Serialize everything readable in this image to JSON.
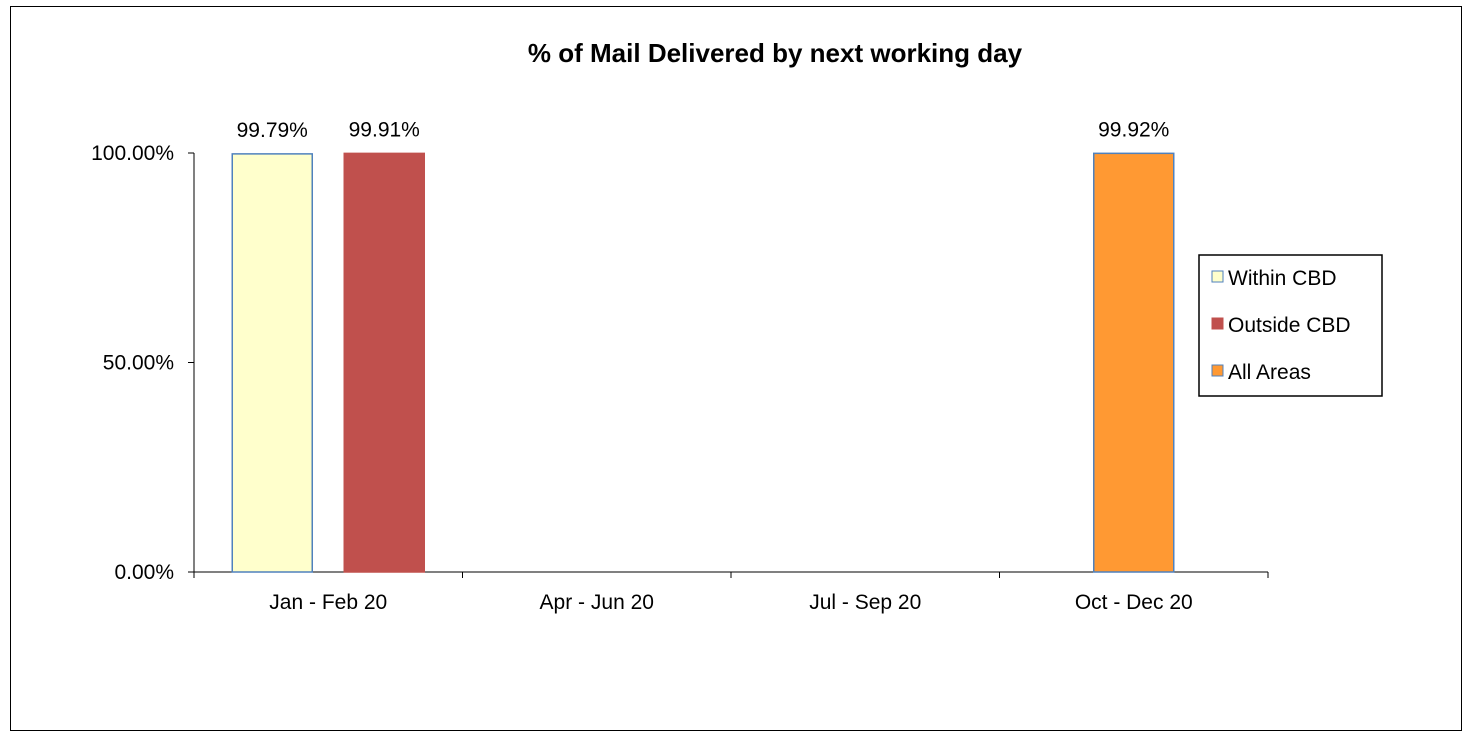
{
  "chart_data": {
    "type": "bar",
    "title": "% of Mail Delivered by next working day",
    "xlabel": "",
    "ylabel": "",
    "categories": [
      "Jan - Feb 20",
      "Apr - Jun 20",
      "Jul - Sep 20",
      "Oct - Dec 20"
    ],
    "series": [
      {
        "name": "Within CBD",
        "color": "#FFFFCC",
        "border": "#4F81BD",
        "values": [
          99.79,
          null,
          null,
          null
        ],
        "labels": [
          "99.79%",
          "",
          "",
          ""
        ]
      },
      {
        "name": "Outside CBD",
        "color": "#C0504D",
        "border": "#C0504D",
        "values": [
          99.91,
          null,
          null,
          null
        ],
        "labels": [
          "99.91%",
          "",
          "",
          ""
        ]
      },
      {
        "name": "All Areas",
        "color": "#FF9933",
        "border": "#4F81BD",
        "values": [
          null,
          null,
          null,
          99.92
        ],
        "labels": [
          "",
          "",
          "",
          "99.92%"
        ]
      }
    ],
    "ylim": [
      0,
      100
    ],
    "yticks": [
      0,
      50,
      100
    ],
    "ytick_labels": [
      "0.00%",
      "50.00%",
      "100.00%"
    ],
    "grid": false,
    "legend": {
      "position": "right",
      "entries": [
        "Within CBD",
        "Outside CBD",
        "All Areas"
      ]
    }
  }
}
